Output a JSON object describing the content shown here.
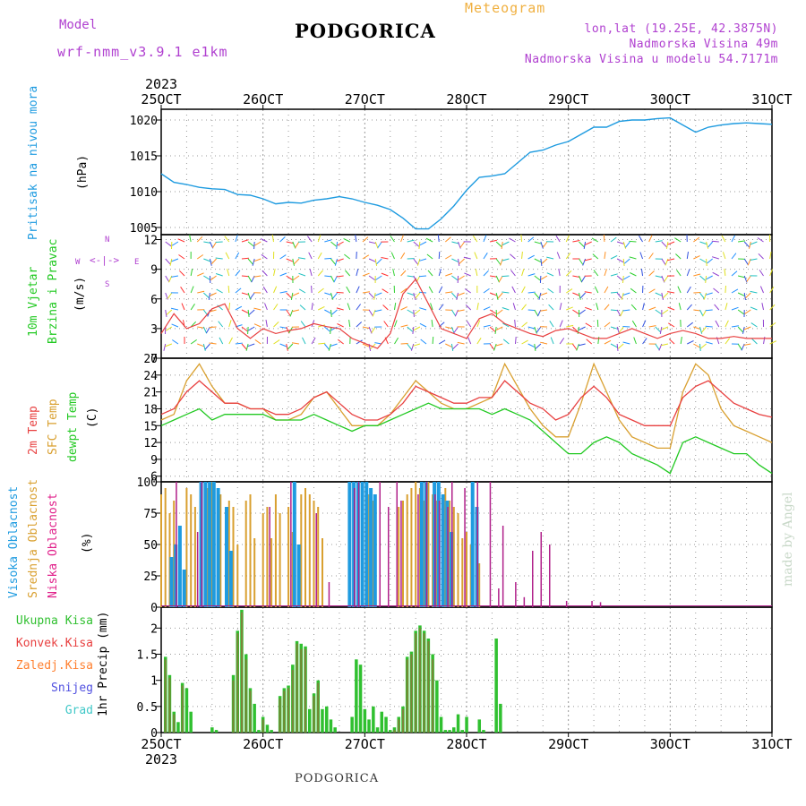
{
  "header": {
    "model_label": "Model",
    "model_name": "wrf-nmm_v3.9.1 e1km",
    "title": "PODGORICA",
    "meteogram": "Meteogram",
    "lonlat": "lon,lat (19.25E, 42.3875N)",
    "elevation": "Nadmorska Visina 49m",
    "model_elevation": "Nadmorska Visina u modelu 54.7171m"
  },
  "footer": {
    "title": "PODGORICA",
    "made_by": "made by Angel"
  },
  "x_axis": {
    "year": "2023",
    "ticks": [
      "25OCT",
      "26OCT",
      "27OCT",
      "28OCT",
      "29OCT",
      "30OCT",
      "31OCT"
    ]
  },
  "colors": {
    "pressure": "#1e9be0",
    "temp2m": "#e84040",
    "sfc": "#d9a030",
    "dew": "#22c922",
    "high_cloud": "#1e9be0",
    "mid_cloud": "#d9a030",
    "low_cloud": "#b0208a",
    "precip_total": "#30c030",
    "precip_conv": "#e84040",
    "precip_frz": "#ff8030",
    "snow": "#5050e0",
    "hail": "#40c8c8",
    "wind_label": "#22c922",
    "wind_dir_label": "#b040d0"
  },
  "panel_labels": {
    "pressure": "Pritisak na nivou mora",
    "pressure_unit": "(hPa)",
    "wind1": "10m Vjetar",
    "wind2": "Brzina i Pravac",
    "wind_unit": "(m/s)",
    "wind_dir_n": "N",
    "wind_dir_s": "S",
    "wind_dir_w": "W",
    "wind_dir_e": "E",
    "temp1": "2m Temp",
    "temp2": "SFC Temp",
    "temp3": "dewpt Temp",
    "temp_unit": "(C)",
    "cloud1": "Visoka Oblacnost",
    "cloud2": "Srednja Oblacnost",
    "cloud3": "Niska Oblacnost",
    "cloud_unit": "(%)",
    "precip_legend": [
      "Ukupna Kisa",
      "Konvek.Kisa",
      "Zaledj.Kisa",
      "Snijeg",
      "Grad"
    ],
    "precip_unit": "1hr Precip (mm)"
  },
  "chart_data": [
    {
      "type": "line",
      "title": "",
      "ylabel": "(hPa)",
      "ylim": [
        1004,
        1021.5
      ],
      "yticks": [
        1005,
        1010,
        1015,
        1020
      ],
      "xlim": [
        0,
        144
      ],
      "x_unit": "hours from 25OCT 00",
      "grid": true,
      "series": [
        {
          "name": "Pritisak na nivou mora",
          "x": [
            0,
            3,
            6,
            9,
            12,
            15,
            18,
            21,
            24,
            27,
            30,
            33,
            36,
            39,
            42,
            45,
            48,
            51,
            54,
            57,
            60,
            63,
            66,
            69,
            72,
            75,
            78,
            81,
            84,
            87,
            90,
            93,
            96,
            99,
            102,
            105,
            108,
            111,
            114,
            117,
            120,
            123,
            126,
            129,
            132,
            135,
            138,
            141,
            144
          ],
          "values": [
            1012.5,
            1011.3,
            1011.0,
            1010.6,
            1010.4,
            1010.3,
            1009.6,
            1009.5,
            1009.0,
            1008.3,
            1008.5,
            1008.4,
            1008.8,
            1009.0,
            1009.3,
            1009.0,
            1008.5,
            1008.1,
            1007.5,
            1006.3,
            1004.8,
            1004.8,
            1006.2,
            1008.0,
            1010.2,
            1012.0,
            1012.2,
            1012.5,
            1014.0,
            1015.5,
            1015.8,
            1016.5,
            1017.0,
            1018.0,
            1019.0,
            1019.0,
            1019.8,
            1020.0,
            1020.0,
            1020.2,
            1020.3,
            1019.3,
            1018.3,
            1019.0,
            1019.3,
            1019.5,
            1019.6,
            1019.5,
            1019.4
          ]
        }
      ]
    },
    {
      "type": "line",
      "title": "",
      "ylabel": "(m/s)",
      "ylim": [
        0,
        12.5
      ],
      "yticks": [
        0,
        3,
        6,
        9,
        12
      ],
      "xlim": [
        0,
        144
      ],
      "grid": true,
      "series": [
        {
          "name": "10m Vjetar",
          "x": [
            0,
            3,
            6,
            9,
            12,
            15,
            18,
            21,
            24,
            27,
            30,
            33,
            36,
            39,
            42,
            45,
            48,
            51,
            54,
            57,
            60,
            63,
            66,
            69,
            72,
            75,
            78,
            81,
            84,
            87,
            90,
            93,
            96,
            99,
            102,
            105,
            108,
            111,
            114,
            117,
            120,
            123,
            126,
            129,
            132,
            135,
            138,
            141,
            144
          ],
          "values": [
            2.5,
            4.5,
            3.0,
            3.5,
            5.0,
            5.5,
            3.0,
            2.0,
            3.0,
            2.5,
            2.8,
            3.0,
            3.5,
            3.2,
            3.0,
            2.0,
            1.5,
            1.0,
            2.5,
            6.5,
            8.0,
            5.5,
            3.0,
            2.5,
            2.0,
            4.0,
            4.5,
            3.5,
            3.0,
            2.5,
            2.2,
            2.8,
            3.0,
            2.5,
            2.0,
            2.0,
            2.5,
            3.0,
            2.5,
            2.0,
            2.5,
            2.8,
            2.5,
            2.0,
            2.0,
            2.2,
            2.0,
            2.0,
            2.0
          ]
        }
      ]
    },
    {
      "type": "line",
      "title": "",
      "ylabel": "(C)",
      "ylim": [
        5,
        27
      ],
      "yticks": [
        6,
        9,
        12,
        15,
        18,
        21,
        24,
        27
      ],
      "xlim": [
        0,
        144
      ],
      "grid": true,
      "series": [
        {
          "name": "2m Temp",
          "x": [
            0,
            3,
            6,
            9,
            12,
            15,
            18,
            21,
            24,
            27,
            30,
            33,
            36,
            39,
            42,
            45,
            48,
            51,
            54,
            57,
            60,
            63,
            66,
            69,
            72,
            75,
            78,
            81,
            84,
            87,
            90,
            93,
            96,
            99,
            102,
            105,
            108,
            111,
            114,
            117,
            120,
            123,
            126,
            129,
            132,
            135,
            138,
            141,
            144
          ],
          "values": [
            17,
            18,
            21,
            23,
            21,
            19,
            19,
            18,
            18,
            17,
            17,
            18,
            20,
            21,
            19,
            17,
            16,
            16,
            17,
            19,
            22,
            21,
            20,
            19,
            19,
            20,
            20,
            23,
            21,
            19,
            18,
            16,
            17,
            20,
            22,
            20,
            17,
            16,
            15,
            15,
            15,
            20,
            22,
            23,
            21,
            19,
            18,
            17,
            16.5
          ]
        },
        {
          "name": "SFC Temp",
          "x": [
            0,
            3,
            6,
            9,
            12,
            15,
            18,
            21,
            24,
            27,
            30,
            33,
            36,
            39,
            42,
            45,
            48,
            51,
            54,
            57,
            60,
            63,
            66,
            69,
            72,
            75,
            78,
            81,
            84,
            87,
            90,
            93,
            96,
            99,
            102,
            105,
            108,
            111,
            114,
            117,
            120,
            123,
            126,
            129,
            132,
            135,
            138,
            141,
            144
          ],
          "values": [
            16,
            17,
            23,
            26,
            22,
            19,
            19,
            18,
            18,
            16,
            16,
            17,
            20,
            21,
            18,
            15,
            15,
            15,
            17,
            20,
            23,
            21,
            19,
            18,
            18,
            19,
            20,
            26,
            22,
            18,
            15,
            13,
            13,
            19,
            26,
            21,
            16,
            13,
            12,
            11,
            11,
            21,
            26,
            24,
            18,
            15,
            14,
            13,
            12
          ]
        },
        {
          "name": "dewpt Temp",
          "x": [
            0,
            3,
            6,
            9,
            12,
            15,
            18,
            21,
            24,
            27,
            30,
            33,
            36,
            39,
            42,
            45,
            48,
            51,
            54,
            57,
            60,
            63,
            66,
            69,
            72,
            75,
            78,
            81,
            84,
            87,
            90,
            93,
            96,
            99,
            102,
            105,
            108,
            111,
            114,
            117,
            120,
            123,
            126,
            129,
            132,
            135,
            138,
            141,
            144
          ],
          "values": [
            15,
            16,
            17,
            18,
            16,
            17,
            17,
            17,
            17,
            16,
            16,
            16,
            17,
            16,
            15,
            14,
            15,
            15,
            16,
            17,
            18,
            19,
            18,
            18,
            18,
            18,
            17,
            18,
            17,
            16,
            14,
            12,
            10,
            10,
            12,
            13,
            12,
            10,
            9,
            8,
            6.5,
            12,
            13,
            12,
            11,
            10,
            10,
            8,
            6.5
          ]
        }
      ]
    },
    {
      "type": "bar",
      "title": "",
      "ylabel": "(%)",
      "ylim": [
        0,
        100
      ],
      "yticks": [
        0,
        25,
        50,
        75,
        100
      ],
      "xlim": [
        0,
        144
      ],
      "grid": true,
      "series": [
        {
          "name": "Visoka Oblacnost",
          "x": [
            2,
            3,
            4,
            5,
            9,
            10,
            11,
            12,
            13,
            15,
            16,
            31,
            32,
            44,
            45,
            46,
            47,
            48,
            49,
            50,
            61,
            62,
            64,
            65,
            66,
            67,
            68,
            73,
            74
          ],
          "values": [
            40,
            50,
            65,
            30,
            100,
            100,
            100,
            100,
            95,
            80,
            45,
            100,
            50,
            100,
            100,
            100,
            100,
            100,
            95,
            90,
            100,
            100,
            100,
            100,
            90,
            85,
            60,
            100,
            80
          ]
        },
        {
          "name": "Srednja Oblacnost",
          "x": [
            0,
            1,
            2,
            3,
            6,
            7,
            8,
            11,
            12,
            14,
            16,
            17,
            18,
            20,
            21,
            22,
            24,
            25,
            26,
            27,
            28,
            30,
            31,
            33,
            34,
            35,
            36,
            37,
            38,
            49,
            50,
            56,
            57,
            58,
            59,
            60,
            61,
            62,
            63,
            64,
            65,
            67,
            68,
            69,
            70,
            71,
            72,
            73,
            75
          ],
          "values": [
            90,
            95,
            75,
            85,
            95,
            90,
            80,
            95,
            100,
            90,
            85,
            80,
            50,
            85,
            90,
            55,
            75,
            80,
            55,
            90,
            75,
            80,
            60,
            90,
            95,
            90,
            85,
            80,
            55,
            90,
            85,
            80,
            85,
            90,
            95,
            100,
            95,
            85,
            100,
            90,
            85,
            95,
            85,
            80,
            75,
            55,
            60,
            50,
            35
          ]
        },
        {
          "name": "Niska Oblacnost",
          "x": [
            4,
            9,
            10,
            26,
            31,
            37,
            40,
            46,
            47,
            52,
            54,
            56,
            57,
            61,
            63,
            65,
            66,
            68,
            69,
            72,
            75,
            78,
            80,
            81,
            84,
            86,
            88,
            90,
            92,
            96,
            102,
            104
          ],
          "values": [
            100,
            60,
            100,
            80,
            100,
            75,
            20,
            95,
            100,
            100,
            80,
            100,
            85,
            90,
            100,
            90,
            85,
            80,
            100,
            95,
            100,
            100,
            15,
            65,
            20,
            8,
            45,
            60,
            50,
            5,
            5,
            4
          ]
        }
      ]
    },
    {
      "type": "bar",
      "title": "",
      "ylabel": "1hr Precip (mm)",
      "ylim": [
        0,
        2.4
      ],
      "yticks": [
        0,
        0.5,
        1,
        1.5,
        2
      ],
      "xlim": [
        0,
        144
      ],
      "grid": true,
      "series": [
        {
          "name": "Ukupna Kisa",
          "x": [
            1,
            2,
            3,
            4,
            5,
            6,
            7,
            12,
            13,
            17,
            18,
            19,
            20,
            21,
            22,
            23,
            24,
            25,
            26,
            27,
            28,
            29,
            30,
            31,
            32,
            33,
            34,
            35,
            36,
            37,
            38,
            39,
            40,
            41,
            45,
            46,
            47,
            48,
            49,
            50,
            51,
            52,
            53,
            54,
            55,
            56,
            57,
            58,
            59,
            60,
            61,
            62,
            63,
            64,
            65,
            66,
            67,
            68,
            69,
            70,
            71,
            72,
            75,
            76,
            78,
            79,
            80,
            81,
            82,
            83
          ],
          "values": [
            1.45,
            1.1,
            0.4,
            0.2,
            0.95,
            0.85,
            0.4,
            0.1,
            0.05,
            1.1,
            1.95,
            2.35,
            1.5,
            0.85,
            0.55,
            0.05,
            0.3,
            0.15,
            0.05,
            0,
            0.7,
            0.85,
            0.9,
            1.3,
            1.75,
            1.7,
            1.65,
            0.45,
            0.75,
            1.0,
            0.45,
            0.5,
            0.25,
            0.1,
            0.3,
            1.4,
            1.3,
            0.45,
            0.25,
            0.5,
            0.1,
            0.4,
            0.3,
            0.05,
            0.1,
            0.3,
            0.5,
            1.45,
            1.55,
            1.95,
            2.05,
            1.95,
            1.8,
            1.5,
            1.0,
            0.3,
            0.05,
            0.05,
            0.1,
            0.35,
            0.05,
            0.3,
            0.25,
            0.05,
            0,
            1.8,
            0.55,
            0,
            0,
            0
          ]
        },
        {
          "name": "Konvek.Kisa",
          "x": [
            1,
            2,
            3,
            5,
            17,
            18,
            19,
            20,
            21,
            24,
            28,
            29,
            30,
            31,
            32,
            33,
            34,
            36,
            37,
            55,
            56,
            57,
            58,
            59,
            60,
            61,
            62,
            63,
            64
          ],
          "values": [
            1.4,
            1.05,
            0.35,
            0.9,
            1.0,
            1.9,
            2.3,
            1.4,
            0.8,
            0.25,
            0.65,
            0.8,
            0.85,
            1.2,
            1.7,
            1.6,
            1.6,
            0.7,
            0.95,
            0.05,
            0.25,
            0.45,
            1.4,
            1.5,
            1.9,
            2.0,
            1.9,
            1.75,
            1.4
          ]
        }
      ]
    }
  ]
}
